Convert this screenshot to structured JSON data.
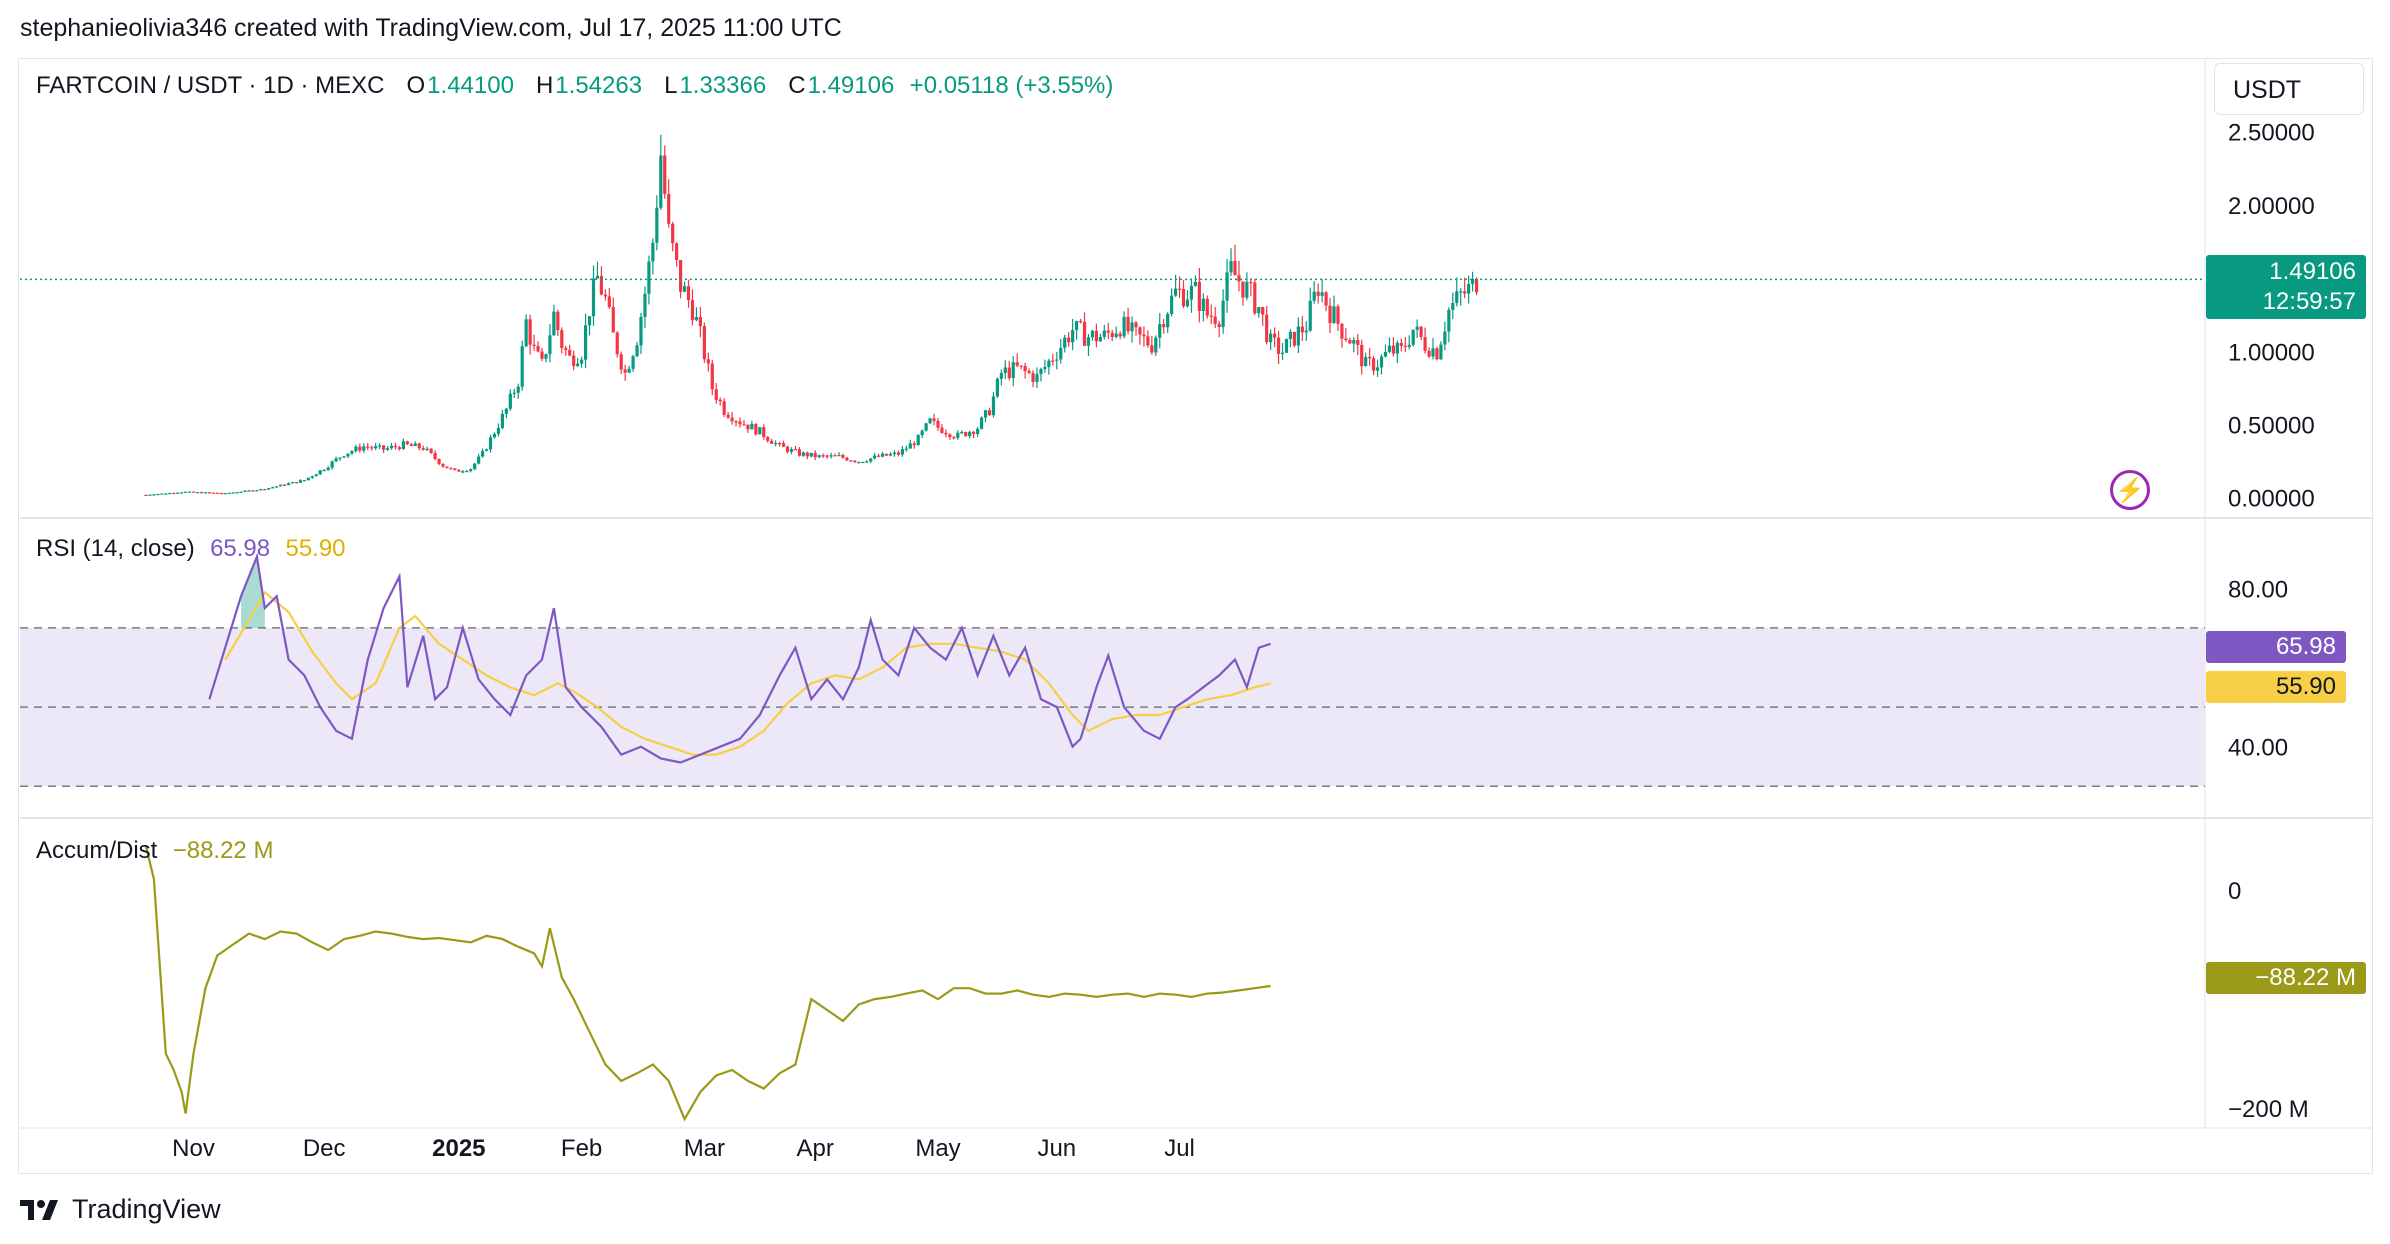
{
  "attribution": "stephanieolivia346 created with TradingView.com, Jul 17, 2025 11:00 UTC",
  "brand": "TradingView",
  "unit": "USDT",
  "colors": {
    "up": "#089981",
    "down": "#f23645",
    "rsi": "#7e57c2",
    "rsi_ma": "#f7cf46",
    "ad": "#9a9a18",
    "band": "#ede8f8"
  },
  "chart_data": [
    {
      "type": "candlestick",
      "title": "FARTCOIN / USDT · 1D · MEXC",
      "ohlc_labels": {
        "o_label": "O",
        "o": "1.44100",
        "h_label": "H",
        "h": "1.54263",
        "l_label": "L",
        "l": "1.33366",
        "c_label": "C",
        "c": "1.49106",
        "change": "+0.05118 (+3.55%)"
      },
      "ylabels": [
        "2.50000",
        "2.00000",
        "1.00000",
        "0.50000",
        "0.00000"
      ],
      "yticks": [
        2.5,
        2.0,
        1.0,
        0.5,
        0.0
      ],
      "ylim": [
        -0.05,
        2.75
      ],
      "last_price": "1.49106",
      "countdown": "12:59:57",
      "close_path": [
        [
          0,
          0.02
        ],
        [
          10,
          0.04
        ],
        [
          20,
          0.03
        ],
        [
          30,
          0.06
        ],
        [
          40,
          0.12
        ],
        [
          45,
          0.2
        ],
        [
          50,
          0.3
        ],
        [
          55,
          0.35
        ],
        [
          60,
          0.33
        ],
        [
          65,
          0.36
        ],
        [
          70,
          0.34
        ],
        [
          75,
          0.22
        ],
        [
          78,
          0.18
        ],
        [
          82,
          0.2
        ],
        [
          85,
          0.3
        ],
        [
          88,
          0.45
        ],
        [
          91,
          0.6
        ],
        [
          94,
          0.8
        ],
        [
          96,
          1.2
        ],
        [
          98,
          1.0
        ],
        [
          100,
          0.9
        ],
        [
          103,
          1.25
        ],
        [
          105,
          1.05
        ],
        [
          107,
          0.95
        ],
        [
          110,
          1.0
        ],
        [
          112,
          1.3
        ],
        [
          114,
          1.5
        ],
        [
          116,
          1.35
        ],
        [
          118,
          1.1
        ],
        [
          121,
          0.85
        ],
        [
          124,
          1.1
        ],
        [
          126,
          1.4
        ],
        [
          128,
          1.75
        ],
        [
          130,
          2.35
        ],
        [
          132,
          1.8
        ],
        [
          135,
          1.45
        ],
        [
          138,
          1.3
        ],
        [
          140,
          1.1
        ],
        [
          143,
          0.75
        ],
        [
          146,
          0.6
        ],
        [
          150,
          0.52
        ],
        [
          155,
          0.45
        ],
        [
          160,
          0.35
        ],
        [
          165,
          0.3
        ],
        [
          170,
          0.28
        ],
        [
          175,
          0.28
        ],
        [
          180,
          0.25
        ],
        [
          185,
          0.28
        ],
        [
          190,
          0.3
        ],
        [
          195,
          0.4
        ],
        [
          198,
          0.52
        ],
        [
          200,
          0.48
        ],
        [
          205,
          0.42
        ],
        [
          210,
          0.48
        ],
        [
          213,
          0.6
        ],
        [
          216,
          0.85
        ],
        [
          220,
          0.88
        ],
        [
          225,
          0.82
        ],
        [
          230,
          1.0
        ],
        [
          234,
          1.15
        ],
        [
          238,
          1.1
        ],
        [
          242,
          1.1
        ],
        [
          246,
          1.18
        ],
        [
          250,
          1.1
        ],
        [
          254,
          1.05
        ],
        [
          257,
          1.25
        ],
        [
          260,
          1.4
        ],
        [
          265,
          1.4
        ],
        [
          268,
          1.25
        ],
        [
          271,
          1.25
        ],
        [
          274,
          1.55
        ],
        [
          278,
          1.42
        ],
        [
          281,
          1.3
        ],
        [
          284,
          1.05
        ],
        [
          287,
          1.0
        ],
        [
          290,
          1.1
        ],
        [
          293,
          1.18
        ],
        [
          296,
          1.45
        ],
        [
          299,
          1.28
        ],
        [
          302,
          1.15
        ],
        [
          305,
          1.05
        ],
        [
          308,
          0.9
        ],
        [
          311,
          0.92
        ],
        [
          314,
          1.0
        ],
        [
          317,
          1.0
        ],
        [
          320,
          1.15
        ],
        [
          323,
          1.05
        ],
        [
          326,
          1.0
        ],
        [
          329,
          1.28
        ],
        [
          332,
          1.38
        ],
        [
          335,
          1.44
        ],
        [
          336,
          1.49
        ]
      ],
      "n_days": 337,
      "x_axis": [
        "Nov",
        "Dec",
        "2025",
        "Feb",
        "Mar",
        "Apr",
        "May",
        "Jun",
        "Jul"
      ],
      "x_axis_day": [
        12,
        45,
        79,
        110,
        141,
        169,
        200,
        230,
        261
      ]
    },
    {
      "type": "line",
      "title": "RSI (14, close)",
      "series": [
        {
          "name": "RSI",
          "value_label": "65.98",
          "path": [
            [
              16,
              52
            ],
            [
              20,
              65
            ],
            [
              24,
              78
            ],
            [
              28,
              88
            ],
            [
              30,
              75
            ],
            [
              33,
              78
            ],
            [
              36,
              62
            ],
            [
              40,
              58
            ],
            [
              44,
              50
            ],
            [
              48,
              44
            ],
            [
              52,
              42
            ],
            [
              56,
              62
            ],
            [
              60,
              75
            ],
            [
              64,
              83
            ],
            [
              66,
              55
            ],
            [
              70,
              68
            ],
            [
              73,
              52
            ],
            [
              76,
              55
            ],
            [
              80,
              70
            ],
            [
              84,
              57
            ],
            [
              88,
              52
            ],
            [
              92,
              48
            ],
            [
              96,
              58
            ],
            [
              100,
              62
            ],
            [
              103,
              75
            ],
            [
              106,
              55
            ],
            [
              110,
              50
            ],
            [
              115,
              45
            ],
            [
              120,
              38
            ],
            [
              125,
              40
            ],
            [
              130,
              37
            ],
            [
              135,
              36
            ],
            [
              140,
              38
            ],
            [
              145,
              40
            ],
            [
              150,
              42
            ],
            [
              155,
              48
            ],
            [
              160,
              58
            ],
            [
              164,
              65
            ],
            [
              168,
              52
            ],
            [
              172,
              57
            ],
            [
              176,
              52
            ],
            [
              180,
              60
            ],
            [
              183,
              72
            ],
            [
              186,
              62
            ],
            [
              190,
              58
            ],
            [
              194,
              70
            ],
            [
              198,
              65
            ],
            [
              202,
              62
            ],
            [
              206,
              70
            ],
            [
              210,
              58
            ],
            [
              214,
              68
            ],
            [
              218,
              58
            ],
            [
              222,
              65
            ],
            [
              226,
              52
            ],
            [
              230,
              50
            ],
            [
              234,
              40
            ],
            [
              236,
              42
            ],
            [
              240,
              55
            ],
            [
              243,
              63
            ],
            [
              247,
              50
            ],
            [
              252,
              44
            ],
            [
              256,
              42
            ],
            [
              260,
              50
            ],
            [
              263,
              52
            ],
            [
              267,
              55
            ],
            [
              271,
              58
            ],
            [
              275,
              62
            ],
            [
              278,
              55
            ],
            [
              281,
              65
            ],
            [
              284,
              66
            ]
          ]
        },
        {
          "name": "RSI-based MA",
          "value_label": "55.90",
          "path": [
            [
              20,
              62
            ],
            [
              26,
              72
            ],
            [
              30,
              79
            ],
            [
              36,
              74
            ],
            [
              42,
              64
            ],
            [
              48,
              56
            ],
            [
              52,
              52
            ],
            [
              58,
              56
            ],
            [
              64,
              70
            ],
            [
              68,
              73
            ],
            [
              74,
              66
            ],
            [
              80,
              62
            ],
            [
              86,
              58
            ],
            [
              92,
              55
            ],
            [
              98,
              53
            ],
            [
              104,
              56
            ],
            [
              108,
              54
            ],
            [
              114,
              50
            ],
            [
              120,
              45
            ],
            [
              126,
              42
            ],
            [
              132,
              40
            ],
            [
              138,
              38
            ],
            [
              144,
              38
            ],
            [
              150,
              40
            ],
            [
              156,
              44
            ],
            [
              162,
              51
            ],
            [
              168,
              56
            ],
            [
              174,
              58
            ],
            [
              180,
              57
            ],
            [
              186,
              60
            ],
            [
              192,
              65
            ],
            [
              198,
              66
            ],
            [
              204,
              66
            ],
            [
              210,
              65
            ],
            [
              216,
              64
            ],
            [
              222,
              62
            ],
            [
              228,
              56
            ],
            [
              234,
              48
            ],
            [
              238,
              44
            ],
            [
              244,
              47
            ],
            [
              250,
              48
            ],
            [
              256,
              48
            ],
            [
              262,
              50
            ],
            [
              268,
              52
            ],
            [
              274,
              53
            ],
            [
              280,
              55
            ],
            [
              284,
              56
            ]
          ]
        }
      ],
      "ylabels": [
        "80.00",
        "40.00"
      ],
      "yticks": [
        80,
        40
      ],
      "band": [
        30,
        70
      ],
      "midline": 50,
      "ylim": [
        24,
        96
      ]
    },
    {
      "type": "line",
      "title": "Accum/Dist",
      "value_label": "−88.22 M",
      "ylabels": [
        "0",
        "−200 M"
      ],
      "yticks": [
        0,
        -200
      ],
      "ylim": [
        -220,
        55
      ],
      "path": [
        [
          0,
          40
        ],
        [
          2,
          10
        ],
        [
          5,
          -150
        ],
        [
          7,
          -165
        ],
        [
          9,
          -185
        ],
        [
          10,
          -205
        ],
        [
          12,
          -150
        ],
        [
          15,
          -90
        ],
        [
          18,
          -60
        ],
        [
          22,
          -50
        ],
        [
          26,
          -40
        ],
        [
          30,
          -45
        ],
        [
          34,
          -38
        ],
        [
          38,
          -40
        ],
        [
          42,
          -48
        ],
        [
          46,
          -55
        ],
        [
          50,
          -45
        ],
        [
          54,
          -42
        ],
        [
          58,
          -38
        ],
        [
          62,
          -40
        ],
        [
          66,
          -43
        ],
        [
          70,
          -45
        ],
        [
          74,
          -44
        ],
        [
          78,
          -46
        ],
        [
          82,
          -48
        ],
        [
          86,
          -42
        ],
        [
          90,
          -45
        ],
        [
          94,
          -52
        ],
        [
          98,
          -58
        ],
        [
          100,
          -70
        ],
        [
          102,
          -35
        ],
        [
          105,
          -80
        ],
        [
          108,
          -100
        ],
        [
          112,
          -130
        ],
        [
          116,
          -160
        ],
        [
          120,
          -175
        ],
        [
          124,
          -168
        ],
        [
          128,
          -160
        ],
        [
          132,
          -175
        ],
        [
          136,
          -210
        ],
        [
          140,
          -185
        ],
        [
          144,
          -170
        ],
        [
          148,
          -165
        ],
        [
          152,
          -175
        ],
        [
          156,
          -182
        ],
        [
          160,
          -168
        ],
        [
          164,
          -160
        ],
        [
          168,
          -100
        ],
        [
          172,
          -110
        ],
        [
          176,
          -120
        ],
        [
          180,
          -105
        ],
        [
          184,
          -100
        ],
        [
          188,
          -98
        ],
        [
          192,
          -95
        ],
        [
          196,
          -92
        ],
        [
          200,
          -100
        ],
        [
          204,
          -90
        ],
        [
          208,
          -90
        ],
        [
          212,
          -95
        ],
        [
          216,
          -95
        ],
        [
          220,
          -92
        ],
        [
          224,
          -96
        ],
        [
          228,
          -98
        ],
        [
          232,
          -95
        ],
        [
          236,
          -96
        ],
        [
          240,
          -98
        ],
        [
          244,
          -96
        ],
        [
          248,
          -95
        ],
        [
          252,
          -98
        ],
        [
          256,
          -95
        ],
        [
          260,
          -96
        ],
        [
          264,
          -98
        ],
        [
          268,
          -95
        ],
        [
          272,
          -94
        ],
        [
          276,
          -92
        ],
        [
          280,
          -90
        ],
        [
          284,
          -88
        ]
      ]
    }
  ]
}
